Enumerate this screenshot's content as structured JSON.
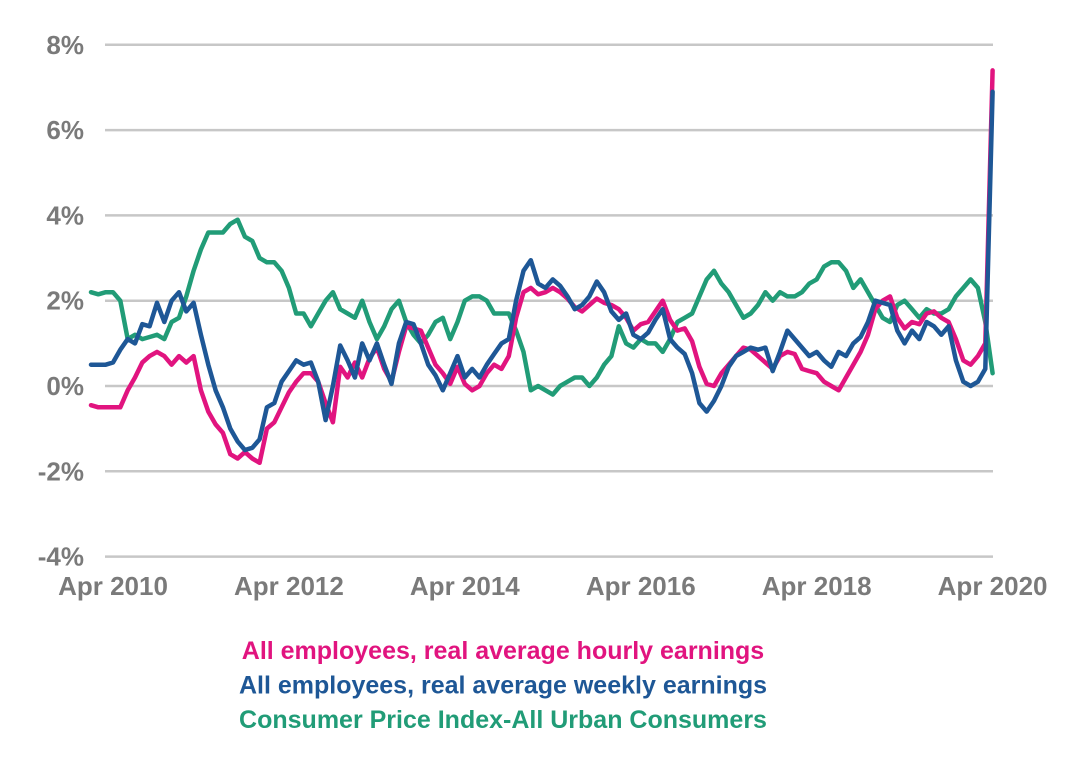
{
  "chart_data": {
    "type": "line",
    "title": "",
    "xlabel": "",
    "ylabel": "",
    "frequency": "monthly",
    "start": "Jan 2010",
    "end": "Apr 2020",
    "grid": "horizontal",
    "legend_position": "bottom-center",
    "background_color": "#ffffff",
    "grid_color": "#c7c7c7",
    "axis_label_color": "#7a7a7a",
    "y_axis": {
      "min": -4,
      "max": 8,
      "tick_suffix": "%",
      "ticks": [
        {
          "label": "8%",
          "value": 8
        },
        {
          "label": "6%",
          "value": 6
        },
        {
          "label": "4%",
          "value": 4
        },
        {
          "label": "2%",
          "value": 2
        },
        {
          "label": "0%",
          "value": 0
        },
        {
          "label": "-2%",
          "value": -2
        },
        {
          "label": "-4%",
          "value": -4
        }
      ]
    },
    "x_axis": {
      "ticks": [
        {
          "label": "Apr 2010",
          "month_index": 3
        },
        {
          "label": "Apr 2012",
          "month_index": 27
        },
        {
          "label": "Apr 2014",
          "month_index": 51
        },
        {
          "label": "Apr 2016",
          "month_index": 75
        },
        {
          "label": "Apr 2018",
          "month_index": 99
        },
        {
          "label": "Apr 2020",
          "month_index": 123
        }
      ]
    },
    "draw_order": [
      2,
      0,
      1
    ],
    "series": [
      {
        "name": "All employees, real average hourly earnings",
        "color": "#e1147f",
        "values": [
          -0.45,
          -0.5,
          -0.5,
          -0.5,
          -0.5,
          -0.1,
          0.2,
          0.55,
          0.7,
          0.8,
          0.7,
          0.5,
          0.7,
          0.55,
          0.7,
          -0.1,
          -0.6,
          -0.9,
          -1.1,
          -1.6,
          -1.7,
          -1.55,
          -1.7,
          -1.8,
          -1.0,
          -0.85,
          -0.5,
          -0.15,
          0.1,
          0.3,
          0.3,
          0.1,
          -0.4,
          -0.85,
          0.45,
          0.2,
          0.55,
          0.2,
          0.65,
          0.9,
          0.4,
          0.1,
          0.8,
          1.4,
          1.35,
          1.3,
          0.9,
          0.5,
          0.3,
          0.05,
          0.45,
          0.05,
          -0.1,
          0.0,
          0.3,
          0.5,
          0.4,
          0.7,
          1.6,
          2.2,
          2.3,
          2.15,
          2.2,
          2.3,
          2.2,
          2.05,
          1.85,
          1.75,
          1.9,
          2.05,
          1.95,
          1.9,
          1.8,
          1.6,
          1.3,
          1.45,
          1.5,
          1.75,
          2.0,
          1.55,
          1.3,
          1.35,
          1.05,
          0.45,
          0.05,
          0.0,
          0.3,
          0.5,
          0.7,
          0.9,
          0.85,
          0.7,
          0.55,
          0.4,
          0.7,
          0.8,
          0.75,
          0.4,
          0.35,
          0.3,
          0.1,
          0.0,
          -0.1,
          0.2,
          0.5,
          0.8,
          1.2,
          1.8,
          2.0,
          2.1,
          1.6,
          1.35,
          1.5,
          1.45,
          1.7,
          1.75,
          1.6,
          1.5,
          1.1,
          0.6,
          0.5,
          0.7,
          1.0,
          7.4
        ]
      },
      {
        "name": "All employees, real average weekly earnings",
        "color": "#1e5796",
        "values": [
          0.5,
          0.5,
          0.5,
          0.55,
          0.85,
          1.1,
          1.0,
          1.45,
          1.4,
          1.95,
          1.5,
          2.0,
          2.2,
          1.75,
          1.95,
          1.2,
          0.5,
          -0.1,
          -0.5,
          -1.0,
          -1.3,
          -1.5,
          -1.45,
          -1.25,
          -0.5,
          -0.4,
          0.1,
          0.35,
          0.6,
          0.5,
          0.55,
          0.1,
          -0.8,
          0.0,
          0.95,
          0.6,
          0.2,
          1.0,
          0.6,
          1.0,
          0.5,
          0.05,
          1.0,
          1.5,
          1.45,
          1.0,
          0.5,
          0.25,
          -0.1,
          0.3,
          0.7,
          0.2,
          0.4,
          0.2,
          0.5,
          0.75,
          1.0,
          1.1,
          2.0,
          2.7,
          2.95,
          2.4,
          2.3,
          2.5,
          2.35,
          2.1,
          1.8,
          1.9,
          2.1,
          2.45,
          2.2,
          1.75,
          1.55,
          1.7,
          1.2,
          1.1,
          1.25,
          1.55,
          1.8,
          1.1,
          0.9,
          0.75,
          0.3,
          -0.4,
          -0.6,
          -0.35,
          0.0,
          0.45,
          0.7,
          0.8,
          0.9,
          0.85,
          0.9,
          0.35,
          0.8,
          1.3,
          1.1,
          0.9,
          0.7,
          0.8,
          0.6,
          0.45,
          0.8,
          0.7,
          1.0,
          1.15,
          1.5,
          2.0,
          1.95,
          1.9,
          1.3,
          1.0,
          1.3,
          1.1,
          1.5,
          1.4,
          1.2,
          1.4,
          0.6,
          0.1,
          0.0,
          0.1,
          0.4,
          6.9
        ]
      },
      {
        "name": "Consumer Price Index-All Urban Consumers",
        "color": "#219c77",
        "values": [
          2.2,
          2.15,
          2.2,
          2.2,
          2.0,
          1.1,
          1.2,
          1.1,
          1.15,
          1.2,
          1.1,
          1.5,
          1.6,
          2.1,
          2.7,
          3.2,
          3.6,
          3.6,
          3.6,
          3.8,
          3.9,
          3.5,
          3.4,
          3.0,
          2.9,
          2.9,
          2.7,
          2.3,
          1.7,
          1.7,
          1.4,
          1.7,
          2.0,
          2.2,
          1.8,
          1.7,
          1.6,
          2.0,
          1.5,
          1.1,
          1.4,
          1.8,
          2.0,
          1.5,
          1.2,
          1.0,
          1.2,
          1.5,
          1.6,
          1.1,
          1.5,
          2.0,
          2.1,
          2.1,
          2.0,
          1.7,
          1.7,
          1.7,
          1.3,
          0.8,
          -0.1,
          0.0,
          -0.1,
          -0.2,
          0.0,
          0.1,
          0.2,
          0.2,
          0.0,
          0.2,
          0.5,
          0.7,
          1.4,
          1.0,
          0.9,
          1.1,
          1.0,
          1.0,
          0.8,
          1.1,
          1.5,
          1.6,
          1.7,
          2.1,
          2.5,
          2.7,
          2.4,
          2.2,
          1.9,
          1.6,
          1.7,
          1.9,
          2.2,
          2.0,
          2.2,
          2.1,
          2.1,
          2.2,
          2.4,
          2.5,
          2.8,
          2.9,
          2.9,
          2.7,
          2.3,
          2.5,
          2.2,
          1.9,
          1.6,
          1.5,
          1.9,
          2.0,
          1.8,
          1.6,
          1.8,
          1.7,
          1.7,
          1.8,
          2.1,
          2.3,
          2.5,
          2.3,
          1.5,
          0.3
        ]
      }
    ],
    "legend": [
      "All employees, real average hourly earnings",
      "All employees, real average weekly earnings",
      "Consumer Price Index-All Urban Consumers"
    ]
  }
}
